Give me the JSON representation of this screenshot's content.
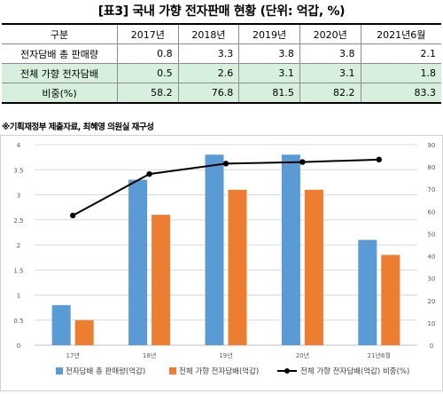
{
  "title": "[표3] 국내 가향 전자판매 현황 (단위: 억갑, %)",
  "table": {
    "header": [
      "구분",
      "2017년",
      "2018년",
      "2019년",
      "2020년",
      "2021년6월"
    ],
    "rows": [
      {
        "label": "전자담배 총 판매량",
        "values": [
          "0.8",
          "3.3",
          "3.8",
          "3.8",
          "2.1"
        ]
      },
      {
        "label": "전체 가향 전자담배",
        "values": [
          "0.5",
          "2.6",
          "3.1",
          "3.1",
          "1.8"
        ]
      },
      {
        "label": "비중(%)",
        "values": [
          "58.2",
          "76.8",
          "81.5",
          "82.2",
          "83.3"
        ]
      }
    ]
  },
  "source": "※기획재정부 제출자료, 최혜영 의원실 재구성",
  "colors": {
    "bar1": "#5b9bd5",
    "bar2": "#ed7d31",
    "line": "#000000",
    "highlight": "#d6f0dd"
  },
  "chart_data": {
    "type": "bar",
    "categories": [
      "17년",
      "18년",
      "19년",
      "20년",
      "21년6월"
    ],
    "series": [
      {
        "name": "전자담배 총 판매량(억갑)",
        "type": "bar",
        "axis": "left",
        "values": [
          0.8,
          3.3,
          3.8,
          3.8,
          2.1
        ]
      },
      {
        "name": "전체 가향 전자담배(억갑)",
        "type": "bar",
        "axis": "left",
        "values": [
          0.5,
          2.6,
          3.1,
          3.1,
          1.8
        ]
      },
      {
        "name": "전체 가향 전자담배(억갑) 비중(%)",
        "type": "line",
        "axis": "right",
        "values": [
          58.2,
          76.8,
          81.5,
          82.2,
          83.3
        ]
      }
    ],
    "yleft": {
      "min": 0,
      "max": 4,
      "ticks": [
        "0",
        "0.5",
        "1",
        "1.5",
        "2",
        "2.5",
        "3",
        "3.5",
        "4"
      ]
    },
    "yright": {
      "min": 0,
      "max": 90,
      "ticks": [
        "0",
        "10",
        "20",
        "30",
        "40",
        "50",
        "60",
        "70",
        "80",
        "90"
      ]
    },
    "grid": true,
    "legend": "bottom"
  }
}
